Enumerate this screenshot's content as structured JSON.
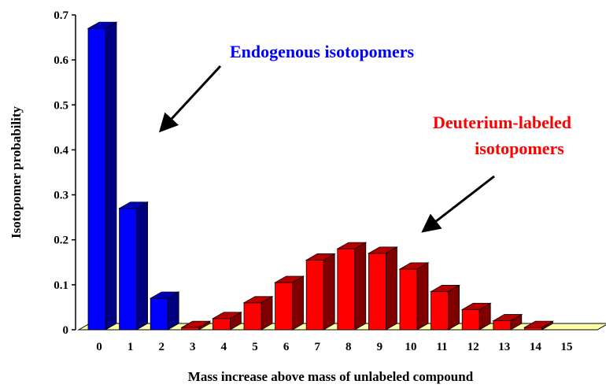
{
  "chart_data": {
    "type": "bar",
    "xlabel": "Mass increase above mass of unlabeled compound",
    "ylabel": "Isotopomer probability",
    "ylim": [
      0,
      0.7
    ],
    "yticks": [
      "0",
      "0.1",
      "0.2",
      "0.3",
      "0.4",
      "0.5",
      "0.6",
      "0.7"
    ],
    "categories": [
      "0",
      "1",
      "2",
      "3",
      "4",
      "5",
      "6",
      "7",
      "8",
      "9",
      "10",
      "11",
      "12",
      "13",
      "14",
      "15"
    ],
    "series": [
      {
        "name": "Endogenous isotopomers",
        "color": "#0000ff",
        "values": [
          0.67,
          0.27,
          0.07,
          0,
          0,
          0,
          0,
          0,
          0,
          0,
          0,
          0,
          0,
          0,
          0,
          0
        ]
      },
      {
        "name": "Deuterium-labeled isotopomers",
        "color": "#ff0000",
        "values": [
          0,
          0,
          0,
          0.005,
          0.025,
          0.06,
          0.105,
          0.155,
          0.18,
          0.17,
          0.135,
          0.085,
          0.045,
          0.02,
          0.005,
          0
        ]
      }
    ],
    "floor_color": "#ffffaa",
    "grid": false,
    "annotations": [
      {
        "lines": [
          "Endogenous isotopomers"
        ],
        "color": "#0000ff"
      },
      {
        "lines": [
          "Deuterium-labeled",
          "isotopomers"
        ],
        "color": "#ff0000"
      }
    ]
  }
}
